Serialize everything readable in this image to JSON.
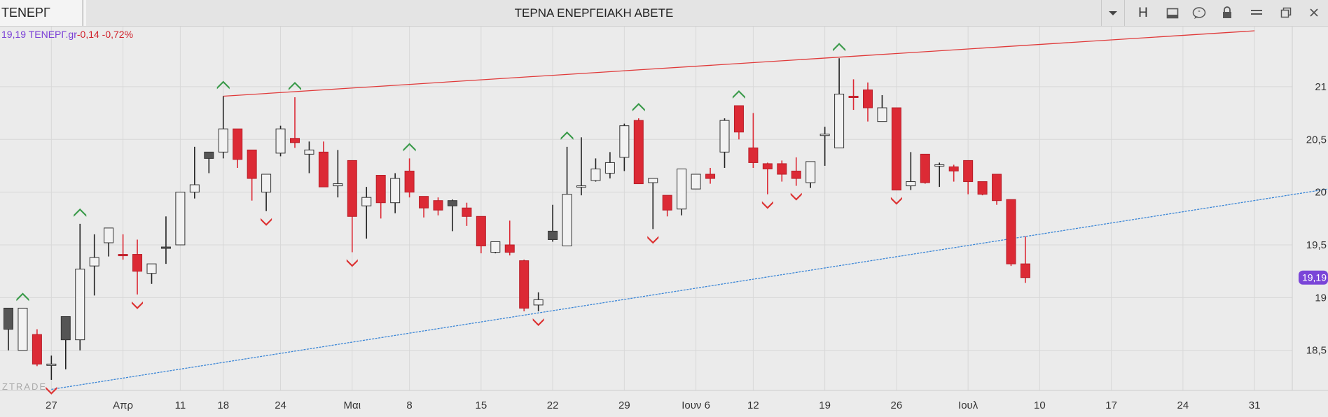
{
  "toolbar": {
    "symbol": "ΤΕΝΕΡΓ",
    "title": "ΤΕΡΝΑ ΕΝΕΡΓΕΙΑΚΗ ΑΒΕΤΕ",
    "h_label": "H",
    "icons": [
      "dropdown-arrow-icon",
      "layout-icon",
      "comment-icon",
      "lock-icon",
      "menu-icon",
      "restore-window-icon",
      "close-icon"
    ]
  },
  "quote": {
    "price": "19,19",
    "symbol": "ΤΕΝΕΡΓ.gr",
    "change": "-0,14 -0,72%"
  },
  "watermark": "ZTRADE",
  "colors": {
    "up": "#f2f2f2",
    "down": "#dc2a35",
    "dark": "#555555",
    "resistance": "#e03a3a",
    "support": "#3b86d6",
    "up_arrow": "#3a9a4a",
    "down_arrow": "#dc3030",
    "price_badge": "#7a45d8"
  },
  "chart_data": {
    "type": "candlestick",
    "y_ticks": [
      {
        "value": 18.5,
        "label": "18,5"
      },
      {
        "value": 19,
        "label": "19"
      },
      {
        "value": 19.5,
        "label": "19,5"
      },
      {
        "value": 20,
        "label": "20"
      },
      {
        "value": 20.5,
        "label": "20,5"
      },
      {
        "value": 21,
        "label": "21"
      }
    ],
    "ylim": [
      18.12,
      21.57
    ],
    "last_price_label": "19,19",
    "last_price": 19.19,
    "x_labels": [
      {
        "i": 3,
        "label": "27"
      },
      {
        "i": 8,
        "label": "Απρ"
      },
      {
        "i": 12,
        "label": "11"
      },
      {
        "i": 15,
        "label": "18"
      },
      {
        "i": 19,
        "label": "24"
      },
      {
        "i": 24,
        "label": "Μαι"
      },
      {
        "i": 28,
        "label": "8"
      },
      {
        "i": 33,
        "label": "15"
      },
      {
        "i": 38,
        "label": "22"
      },
      {
        "i": 43,
        "label": "29"
      },
      {
        "i": 48,
        "label": "Ιουν 6"
      },
      {
        "i": 52,
        "label": "12"
      },
      {
        "i": 57,
        "label": "19"
      },
      {
        "i": 62,
        "label": "26"
      },
      {
        "i": 67,
        "label": "Ιουλ"
      },
      {
        "i": 72,
        "label": "10"
      },
      {
        "i": 77,
        "label": "17"
      },
      {
        "i": 82,
        "label": "24"
      },
      {
        "i": 87,
        "label": "31"
      }
    ],
    "candles": [
      {
        "o": 18.7,
        "h": 18.9,
        "l": 18.5,
        "c": 18.9,
        "s": "dark"
      },
      {
        "o": 18.5,
        "h": 18.9,
        "l": 18.5,
        "c": 18.9,
        "s": "up",
        "m": "up"
      },
      {
        "o": 18.65,
        "h": 18.7,
        "l": 18.35,
        "c": 18.37,
        "s": "down"
      },
      {
        "o": 18.37,
        "h": 18.45,
        "l": 18.22,
        "c": 18.37,
        "s": "up",
        "m": "down"
      },
      {
        "o": 18.6,
        "h": 18.82,
        "l": 18.32,
        "c": 18.82,
        "s": "dark"
      },
      {
        "o": 18.6,
        "h": 19.7,
        "l": 18.5,
        "c": 19.27,
        "s": "up",
        "m": "up"
      },
      {
        "o": 19.3,
        "h": 19.6,
        "l": 19.02,
        "c": 19.38,
        "s": "up"
      },
      {
        "o": 19.52,
        "h": 19.66,
        "l": 19.39,
        "c": 19.66,
        "s": "up"
      },
      {
        "o": 19.41,
        "h": 19.6,
        "l": 19.36,
        "c": 19.41,
        "s": "down"
      },
      {
        "o": 19.41,
        "h": 19.55,
        "l": 19.03,
        "c": 19.25,
        "s": "down",
        "m": "down"
      },
      {
        "o": 19.23,
        "h": 19.32,
        "l": 19.13,
        "c": 19.32,
        "s": "up"
      },
      {
        "o": 19.47,
        "h": 19.77,
        "l": 19.32,
        "c": 19.48,
        "s": "dark"
      },
      {
        "o": 19.5,
        "h": 20.0,
        "l": 19.5,
        "c": 20.0,
        "s": "up"
      },
      {
        "o": 20.0,
        "h": 20.43,
        "l": 19.94,
        "c": 20.07,
        "s": "up"
      },
      {
        "o": 20.32,
        "h": 20.38,
        "l": 20.18,
        "c": 20.38,
        "s": "dark"
      },
      {
        "o": 20.38,
        "h": 20.91,
        "l": 20.32,
        "c": 20.6,
        "s": "up",
        "m": "up"
      },
      {
        "o": 20.6,
        "h": 20.6,
        "l": 20.23,
        "c": 20.31,
        "s": "down"
      },
      {
        "o": 20.4,
        "h": 20.4,
        "l": 19.92,
        "c": 20.13,
        "s": "down"
      },
      {
        "o": 20.0,
        "h": 20.17,
        "l": 19.82,
        "c": 20.17,
        "s": "up",
        "m": "down"
      },
      {
        "o": 20.37,
        "h": 20.63,
        "l": 20.34,
        "c": 20.6,
        "s": "up"
      },
      {
        "o": 20.51,
        "h": 20.9,
        "l": 20.42,
        "c": 20.47,
        "s": "down",
        "m": "up"
      },
      {
        "o": 20.36,
        "h": 20.48,
        "l": 20.18,
        "c": 20.4,
        "s": "up"
      },
      {
        "o": 20.38,
        "h": 20.48,
        "l": 20.05,
        "c": 20.05,
        "s": "down"
      },
      {
        "o": 20.06,
        "h": 20.4,
        "l": 19.95,
        "c": 20.08,
        "s": "up"
      },
      {
        "o": 20.3,
        "h": 20.3,
        "l": 19.43,
        "c": 19.77,
        "s": "down",
        "m": "down"
      },
      {
        "o": 19.87,
        "h": 20.05,
        "l": 19.56,
        "c": 19.95,
        "s": "up"
      },
      {
        "o": 20.16,
        "h": 20.16,
        "l": 19.75,
        "c": 19.9,
        "s": "down"
      },
      {
        "o": 19.9,
        "h": 20.18,
        "l": 19.8,
        "c": 20.13,
        "s": "up"
      },
      {
        "o": 20.2,
        "h": 20.32,
        "l": 19.95,
        "c": 20.0,
        "s": "down",
        "m": "up"
      },
      {
        "o": 19.96,
        "h": 19.96,
        "l": 19.76,
        "c": 19.85,
        "s": "down"
      },
      {
        "o": 19.92,
        "h": 19.95,
        "l": 19.78,
        "c": 19.83,
        "s": "down"
      },
      {
        "o": 19.92,
        "h": 19.93,
        "l": 19.63,
        "c": 19.87,
        "s": "dark"
      },
      {
        "o": 19.85,
        "h": 19.9,
        "l": 19.68,
        "c": 19.77,
        "s": "down"
      },
      {
        "o": 19.77,
        "h": 19.77,
        "l": 19.42,
        "c": 19.49,
        "s": "down"
      },
      {
        "o": 19.43,
        "h": 19.53,
        "l": 19.42,
        "c": 19.53,
        "s": "up"
      },
      {
        "o": 19.5,
        "h": 19.73,
        "l": 19.4,
        "c": 19.43,
        "s": "down"
      },
      {
        "o": 19.35,
        "h": 19.36,
        "l": 18.87,
        "c": 18.9,
        "s": "down"
      },
      {
        "o": 18.93,
        "h": 19.05,
        "l": 18.87,
        "c": 18.98,
        "s": "up",
        "m": "down"
      },
      {
        "o": 19.55,
        "h": 19.88,
        "l": 19.53,
        "c": 19.63,
        "s": "dark"
      },
      {
        "o": 19.49,
        "h": 20.43,
        "l": 19.49,
        "c": 19.98,
        "s": "up",
        "m": "up"
      },
      {
        "o": 20.06,
        "h": 20.52,
        "l": 19.97,
        "c": 20.06,
        "s": "up"
      },
      {
        "o": 20.11,
        "h": 20.32,
        "l": 20.1,
        "c": 20.22,
        "s": "up"
      },
      {
        "o": 20.18,
        "h": 20.38,
        "l": 20.13,
        "c": 20.28,
        "s": "up"
      },
      {
        "o": 20.33,
        "h": 20.65,
        "l": 20.2,
        "c": 20.63,
        "s": "up"
      },
      {
        "o": 20.68,
        "h": 20.7,
        "l": 20.08,
        "c": 20.08,
        "s": "down",
        "m": "up"
      },
      {
        "o": 20.09,
        "h": 20.13,
        "l": 19.65,
        "c": 20.13,
        "s": "up",
        "m": "down"
      },
      {
        "o": 19.97,
        "h": 19.97,
        "l": 19.77,
        "c": 19.83,
        "s": "down"
      },
      {
        "o": 19.84,
        "h": 20.22,
        "l": 19.78,
        "c": 20.22,
        "s": "up"
      },
      {
        "o": 20.03,
        "h": 20.17,
        "l": 20.03,
        "c": 20.17,
        "s": "up"
      },
      {
        "o": 20.17,
        "h": 20.23,
        "l": 20.08,
        "c": 20.13,
        "s": "down"
      },
      {
        "o": 20.38,
        "h": 20.7,
        "l": 20.23,
        "c": 20.68,
        "s": "up"
      },
      {
        "o": 20.82,
        "h": 20.82,
        "l": 20.5,
        "c": 20.57,
        "s": "down",
        "m": "up"
      },
      {
        "o": 20.42,
        "h": 20.75,
        "l": 20.23,
        "c": 20.28,
        "s": "down"
      },
      {
        "o": 20.27,
        "h": 20.28,
        "l": 19.98,
        "c": 20.22,
        "s": "down",
        "m": "down"
      },
      {
        "o": 20.27,
        "h": 20.3,
        "l": 20.1,
        "c": 20.17,
        "s": "down"
      },
      {
        "o": 20.2,
        "h": 20.33,
        "l": 20.06,
        "c": 20.13,
        "s": "down",
        "m": "down"
      },
      {
        "o": 20.09,
        "h": 20.29,
        "l": 20.04,
        "c": 20.29,
        "s": "up"
      },
      {
        "o": 20.55,
        "h": 20.62,
        "l": 20.25,
        "c": 20.55,
        "s": "up"
      },
      {
        "o": 20.42,
        "h": 21.27,
        "l": 20.42,
        "c": 20.93,
        "s": "up",
        "m": "up"
      },
      {
        "o": 20.91,
        "h": 21.07,
        "l": 20.78,
        "c": 20.9,
        "s": "down"
      },
      {
        "o": 20.97,
        "h": 21.04,
        "l": 20.67,
        "c": 20.8,
        "s": "down"
      },
      {
        "o": 20.8,
        "h": 20.92,
        "l": 20.67,
        "c": 20.67,
        "s": "up"
      },
      {
        "o": 20.8,
        "h": 20.8,
        "l": 20.02,
        "c": 20.02,
        "s": "down",
        "m": "down"
      },
      {
        "o": 20.06,
        "h": 20.38,
        "l": 20.02,
        "c": 20.1,
        "s": "up"
      },
      {
        "o": 20.36,
        "h": 20.36,
        "l": 20.08,
        "c": 20.09,
        "s": "down"
      },
      {
        "o": 20.26,
        "h": 20.28,
        "l": 20.05,
        "c": 20.26,
        "s": "up"
      },
      {
        "o": 20.24,
        "h": 20.26,
        "l": 20.1,
        "c": 20.2,
        "s": "down"
      },
      {
        "o": 20.3,
        "h": 20.3,
        "l": 19.98,
        "c": 20.1,
        "s": "down"
      },
      {
        "o": 20.1,
        "h": 20.1,
        "l": 19.97,
        "c": 19.98,
        "s": "down"
      },
      {
        "o": 20.17,
        "h": 20.17,
        "l": 19.88,
        "c": 19.92,
        "s": "down"
      },
      {
        "o": 19.93,
        "h": 19.93,
        "l": 19.3,
        "c": 19.32,
        "s": "down"
      },
      {
        "o": 19.32,
        "h": 19.58,
        "l": 19.14,
        "c": 19.19,
        "s": "down"
      }
    ],
    "trendlines": [
      {
        "name": "resistance",
        "from": [
          15,
          20.91
        ],
        "to": [
          87,
          21.53
        ]
      },
      {
        "name": "support",
        "from": [
          3,
          18.13
        ],
        "to": [
          94,
          20.07
        ]
      }
    ]
  }
}
